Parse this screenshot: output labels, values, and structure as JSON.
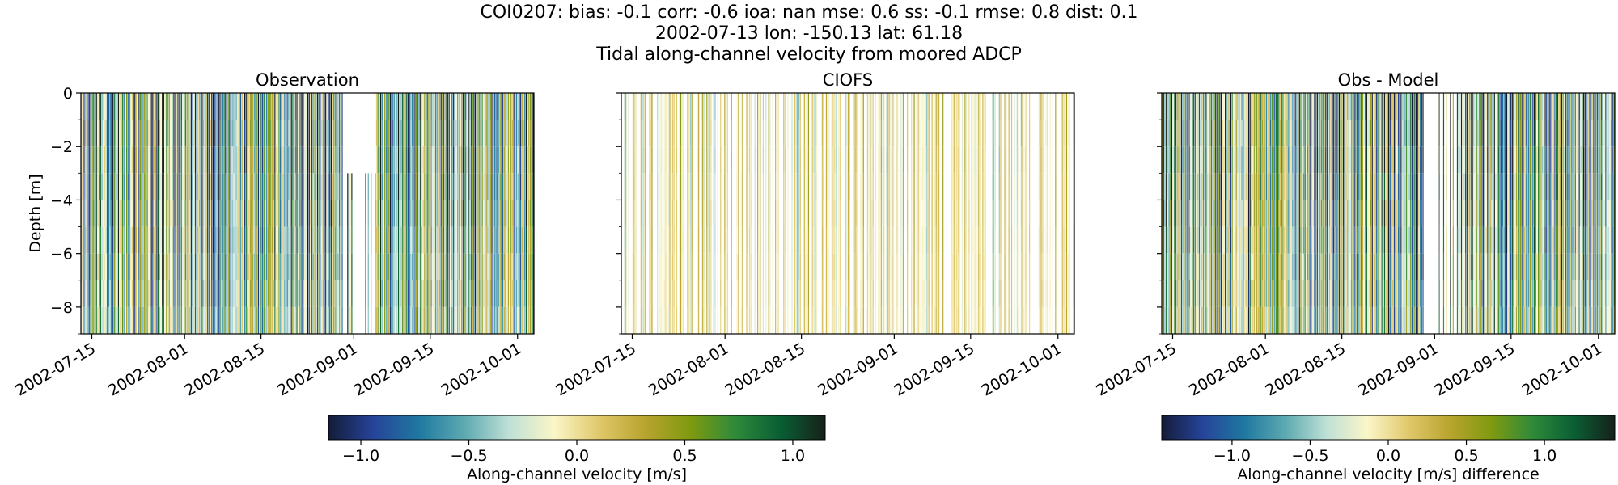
{
  "header": {
    "line1": "COI0207: bias: -0.1  corr: -0.6  ioa: nan  mse: 0.6  ss: -0.1  rmse: 0.8  dist: 0.1",
    "line2": "2002-07-13 lon: -150.13 lat: 61.18",
    "line3": "Tidal along-channel velocity from moored ADCP"
  },
  "colors": {
    "cmap": [
      "#141c38",
      "#26449a",
      "#1f78a0",
      "#5ca9b0",
      "#bfe0d6",
      "#fbf6c8",
      "#e0c86a",
      "#b8a42e",
      "#809a10",
      "#2f8a3a",
      "#0a5f34",
      "#16211a"
    ]
  },
  "chart_data": [
    {
      "type": "heatmap",
      "title": "Observation",
      "xlabel": "",
      "ylabel": "Depth [m]",
      "ylim": [
        -9,
        0
      ],
      "yticks": [
        0,
        -2,
        -4,
        -6,
        -8
      ],
      "ytick_labels": [
        "0",
        "−2",
        "−4",
        "−6",
        "−8"
      ],
      "x_start": "2002-07-13",
      "x_end": "2002-10-04",
      "xtick_dates": [
        "2002-07-15",
        "2002-08-01",
        "2002-08-15",
        "2002-09-01",
        "2002-09-15",
        "2002-10-01"
      ],
      "xtick_labels": [
        "2002-07-15",
        "2002-08-01",
        "2002-08-15",
        "2002-09-01",
        "2002-09-15",
        "2002-10-01"
      ],
      "data_gap": [
        "2002-08-30",
        "2002-09-05"
      ],
      "typical_amplitude_ms": 1.0
    },
    {
      "type": "heatmap",
      "title": "CIOFS",
      "xlabel": "",
      "ylabel": "",
      "ylim": [
        -9,
        0
      ],
      "x_start": "2002-07-13",
      "x_end": "2002-10-04",
      "xtick_dates": [
        "2002-07-15",
        "2002-08-01",
        "2002-08-15",
        "2002-09-01",
        "2002-09-15",
        "2002-10-01"
      ],
      "xtick_labels": [
        "2002-07-15",
        "2002-08-01",
        "2002-08-15",
        "2002-09-01",
        "2002-09-15",
        "2002-10-01"
      ],
      "typical_amplitude_ms": 0.3
    },
    {
      "type": "heatmap",
      "title": "Obs - Model",
      "xlabel": "",
      "ylabel": "",
      "ylim": [
        -9,
        0
      ],
      "x_start": "2002-07-13",
      "x_end": "2002-10-04",
      "xtick_dates": [
        "2002-07-15",
        "2002-08-01",
        "2002-08-15",
        "2002-09-01",
        "2002-09-15",
        "2002-10-01"
      ],
      "xtick_labels": [
        "2002-07-15",
        "2002-08-01",
        "2002-08-15",
        "2002-09-01",
        "2002-09-15",
        "2002-10-01"
      ],
      "data_gap": [
        "2002-08-30",
        "2002-09-05"
      ],
      "typical_amplitude_ms": 1.0
    },
    {
      "type": "colorbar",
      "label": "Along-channel velocity [m/s]",
      "range": [
        -1.15,
        1.15
      ],
      "ticks": [
        -1.0,
        -0.5,
        0.0,
        0.5,
        1.0
      ],
      "tick_labels": [
        "−1.0",
        "−0.5",
        "0.0",
        "0.5",
        "1.0"
      ]
    },
    {
      "type": "colorbar",
      "label": "Along-channel velocity [m/s] difference",
      "range": [
        -1.45,
        1.45
      ],
      "ticks": [
        -1.0,
        -0.5,
        0.0,
        0.5,
        1.0
      ],
      "tick_labels": [
        "−1.0",
        "−0.5",
        "0.0",
        "0.5",
        "1.0"
      ]
    }
  ]
}
